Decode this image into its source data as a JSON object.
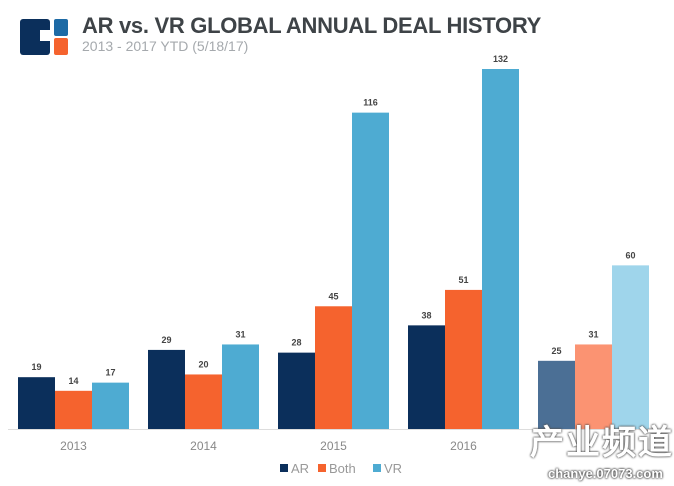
{
  "header": {
    "title": "AR vs. VR GLOBAL ANNUAL DEAL HISTORY",
    "subtitle": "2013 - 2017 YTD (5/18/17)",
    "logo": "cb-insights-logo"
  },
  "watermark": {
    "text": "产业频道",
    "url": "chanye.07073.com"
  },
  "chart_data": {
    "type": "bar",
    "title": "AR vs. VR GLOBAL ANNUAL DEAL HISTORY",
    "subtitle": "2013 - 2017 YTD (5/18/17)",
    "categories": [
      "2013",
      "2014",
      "2015",
      "2016",
      ""
    ],
    "series": [
      {
        "name": "AR",
        "values": [
          19,
          29,
          28,
          38,
          25
        ],
        "color": "#0b2f5b"
      },
      {
        "name": "Both",
        "values": [
          14,
          20,
          45,
          51,
          31
        ],
        "color": "#f5632e"
      },
      {
        "name": "VR",
        "values": [
          17,
          31,
          116,
          132,
          60
        ],
        "color": "#4eabd2"
      }
    ],
    "faded_colors_last_category": [
      "#4b6f95",
      "#fb9372",
      "#9fd5eb"
    ],
    "ylim": [
      0,
      132
    ],
    "grid": false,
    "legend": "bottom-center",
    "xlabel": "",
    "ylabel": ""
  }
}
